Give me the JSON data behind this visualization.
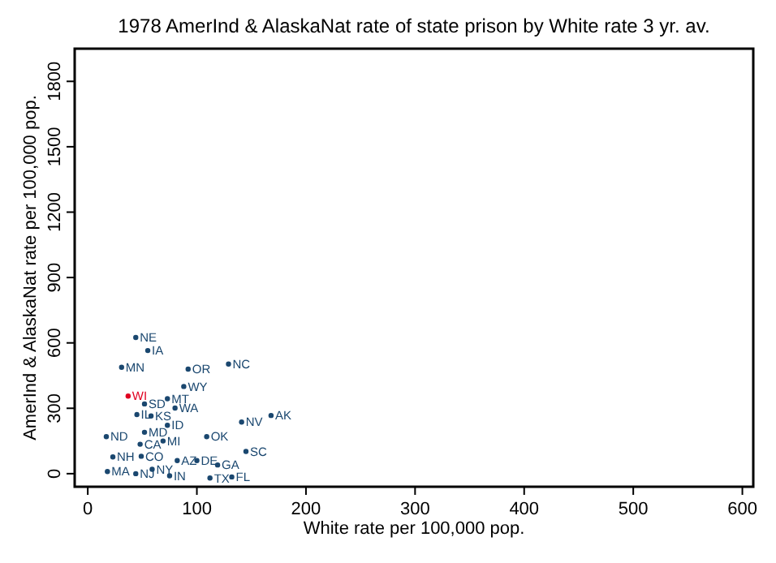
{
  "chart_data": {
    "type": "scatter",
    "title": "1978 AmerInd & AlaskaNat rate of state prison by White rate 3 yr. av.",
    "xlabel": "White rate per 100,000 pop.",
    "ylabel": "AmerInd & AlaskaNat rate per 100,000 pop.",
    "xlim": [
      -12,
      610
    ],
    "ylim": [
      -60,
      1950
    ],
    "xticks": [
      0,
      100,
      200,
      300,
      400,
      500,
      600
    ],
    "yticks": [
      0,
      300,
      600,
      900,
      1200,
      1500,
      1800
    ],
    "marker": "circle",
    "series": [
      {
        "x": [
          44,
          55,
          31,
          92,
          129,
          88,
          37,
          73,
          52,
          80,
          45,
          58,
          73,
          141,
          168,
          17,
          52,
          109,
          48,
          69,
          145,
          49,
          23,
          82,
          100,
          119,
          112,
          132,
          18,
          44,
          59,
          75
        ],
        "values": [
          625,
          565,
          488,
          480,
          503,
          400,
          356,
          344,
          320,
          301,
          271,
          265,
          222,
          237,
          267,
          170,
          190,
          170,
          135,
          150,
          102,
          80,
          77,
          60,
          60,
          40,
          -20,
          -15,
          10,
          0,
          20,
          -10
        ],
        "value_labels": [
          "NE",
          "IA",
          "MN",
          "OR",
          "NC",
          "WY",
          "WI",
          "MT",
          "SD",
          "WA",
          "IL",
          "KS",
          "ID",
          "NV",
          "AK",
          "ND",
          "MD",
          "OK",
          "CA",
          "MI",
          "SC",
          "CO",
          "NH",
          "AZ",
          "DE",
          "GA",
          "TX",
          "FL",
          "MA",
          "NJ",
          "NY",
          "IN"
        ],
        "colors": [
          "#1a476f",
          "#1a476f",
          "#1a476f",
          "#1a476f",
          "#1a476f",
          "#1a476f",
          "#e00020",
          "#1a476f",
          "#1a476f",
          "#1a476f",
          "#1a476f",
          "#1a476f",
          "#1a476f",
          "#1a476f",
          "#1a476f",
          "#1a476f",
          "#1a476f",
          "#1a476f",
          "#1a476f",
          "#1a476f",
          "#1a476f",
          "#1a476f",
          "#1a476f",
          "#1a476f",
          "#1a476f",
          "#1a476f",
          "#1a476f",
          "#1a476f",
          "#1a476f",
          "#1a476f",
          "#1a476f",
          "#1a476f"
        ]
      }
    ]
  }
}
